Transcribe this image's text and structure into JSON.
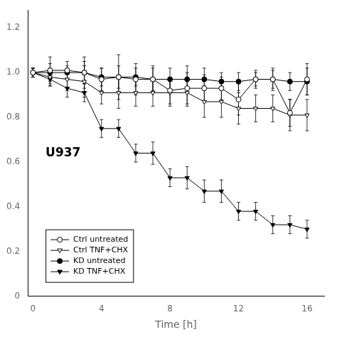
{
  "chart_data": {
    "type": "line",
    "title": "U937",
    "xlabel": "Time [h]",
    "x": [
      0,
      1,
      2,
      3,
      4,
      5,
      6,
      7,
      8,
      9,
      10,
      11,
      12,
      13,
      14,
      15,
      16
    ],
    "xlim": [
      -0.3,
      17
    ],
    "ylim": [
      0,
      1.28
    ],
    "xticks": [
      0,
      4,
      8,
      12,
      16
    ],
    "yticks": [
      0,
      0.2,
      0.4,
      0.6,
      0.8,
      {
        "value": 1.0,
        "label": "1.0"
      },
      1.2
    ],
    "grid": false,
    "legend": "lower left",
    "series": [
      {
        "name": "Ctrl untreated",
        "color": "#000000",
        "marker": "open_circle",
        "values": [
          1.0,
          1.01,
          1.01,
          1.0,
          0.97,
          0.98,
          0.97,
          0.97,
          0.92,
          0.93,
          0.93,
          0.93,
          0.88,
          0.97,
          0.97,
          0.82,
          0.97
        ],
        "errors": [
          0.02,
          0.06,
          0.04,
          0.07,
          0.05,
          0.1,
          0.07,
          0.06,
          0.06,
          0.07,
          0.06,
          0.05,
          0.07,
          0.04,
          0.05,
          0.06,
          0.07
        ]
      },
      {
        "name": "Ctrl TNF+CHX",
        "color": "#000000",
        "marker": "open_triangle_down",
        "values": [
          1.0,
          0.98,
          0.97,
          0.96,
          0.91,
          0.91,
          0.91,
          0.91,
          0.91,
          0.91,
          0.87,
          0.87,
          0.84,
          0.84,
          0.84,
          0.81,
          0.81
        ],
        "errors": [
          0.02,
          0.04,
          0.05,
          0.07,
          0.05,
          0.07,
          0.06,
          0.06,
          0.06,
          0.06,
          0.07,
          0.07,
          0.07,
          0.06,
          0.06,
          0.07,
          0.07
        ]
      },
      {
        "name": "KD untreated",
        "color": "#000000",
        "marker": "circle",
        "values": [
          1.0,
          1.0,
          1.0,
          1.0,
          0.98,
          0.98,
          0.98,
          0.97,
          0.97,
          0.97,
          0.97,
          0.96,
          0.96,
          0.97,
          0.97,
          0.96,
          0.96
        ],
        "errors": [
          0.02,
          0.04,
          0.03,
          0.05,
          0.04,
          0.05,
          0.04,
          0.05,
          0.05,
          0.06,
          0.05,
          0.04,
          0.04,
          0.03,
          0.04,
          0.04,
          0.06
        ]
      },
      {
        "name": "KD TNF+CHX",
        "color": "#000000",
        "marker": "triangle_down",
        "values": [
          1.0,
          0.97,
          0.93,
          0.91,
          0.75,
          0.75,
          0.64,
          0.64,
          0.53,
          0.53,
          0.47,
          0.47,
          0.38,
          0.38,
          0.32,
          0.32,
          0.3
        ],
        "errors": [
          0.02,
          0.03,
          0.04,
          0.04,
          0.04,
          0.04,
          0.04,
          0.05,
          0.04,
          0.05,
          0.05,
          0.05,
          0.04,
          0.04,
          0.04,
          0.04,
          0.04
        ]
      }
    ]
  }
}
